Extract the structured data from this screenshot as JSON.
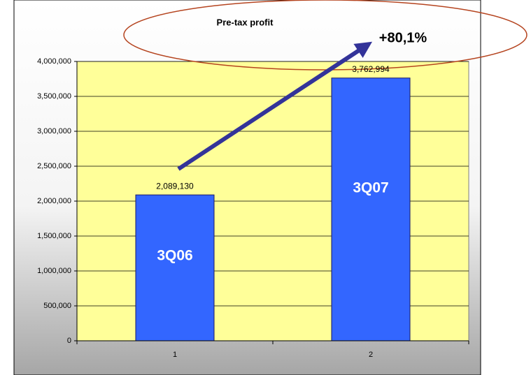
{
  "chart_data": {
    "type": "bar",
    "title": "Pre-tax profit",
    "annotation": "+80,1%",
    "categories": [
      "1",
      "2"
    ],
    "values": [
      2089130,
      3762994
    ],
    "value_labels": [
      "2,089,130",
      "3,762,994"
    ],
    "bar_labels": [
      "3Q06",
      "3Q07"
    ],
    "color": "#3366ff",
    "ylim": [
      0,
      4000000
    ],
    "yticks": [
      0,
      {
        "value": 500000,
        "label": "500,000"
      },
      {
        "value": 1000000,
        "label": "1,000,000"
      },
      {
        "value": 1500000,
        "label": "1,500,000"
      },
      {
        "value": 2000000,
        "label": "2,000,000"
      },
      {
        "value": 2500000,
        "label": "2,500,000"
      },
      {
        "value": 3000000,
        "label": "3,000,000"
      },
      {
        "value": 3500000,
        "label": "3,500,000"
      },
      {
        "value": 4000000,
        "label": "4,000,000"
      }
    ],
    "grid": true
  }
}
